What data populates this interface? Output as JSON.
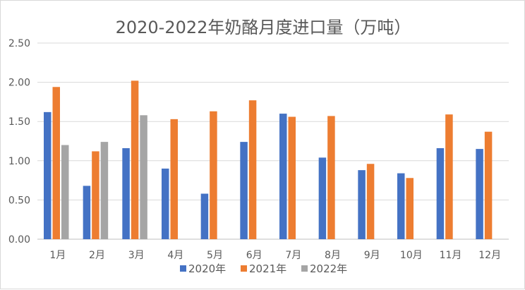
{
  "chart_data": {
    "type": "bar",
    "title": "2020-2022年奶酪月度进口量（万吨）",
    "xlabel": "",
    "ylabel": "",
    "ylim": [
      0,
      2.5
    ],
    "yticks": [
      "0.00",
      "0.50",
      "1.00",
      "1.50",
      "2.00",
      "2.50"
    ],
    "grid": true,
    "legend_position": "bottom",
    "categories": [
      "1月",
      "2月",
      "3月",
      "4月",
      "5月",
      "6月",
      "7月",
      "8月",
      "9月",
      "10月",
      "11月",
      "12月"
    ],
    "series": [
      {
        "name": "2020年",
        "color": "#4472c4",
        "values": [
          1.62,
          0.68,
          1.16,
          0.9,
          0.58,
          1.24,
          1.6,
          1.04,
          0.88,
          0.84,
          1.16,
          1.15
        ]
      },
      {
        "name": "2021年",
        "color": "#ed7d31",
        "values": [
          1.94,
          1.12,
          2.02,
          1.53,
          1.63,
          1.77,
          1.56,
          1.57,
          0.96,
          0.78,
          1.59,
          1.37
        ]
      },
      {
        "name": "2022年",
        "color": "#a5a5a5",
        "values": [
          1.2,
          1.24,
          1.58,
          null,
          null,
          null,
          null,
          null,
          null,
          null,
          null,
          null
        ]
      }
    ]
  }
}
